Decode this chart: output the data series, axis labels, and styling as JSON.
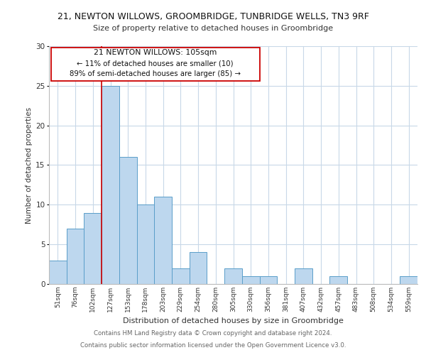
{
  "title_line1": "21, NEWTON WILLOWS, GROOMBRIDGE, TUNBRIDGE WELLS, TN3 9RF",
  "title_line2": "Size of property relative to detached houses in Groombridge",
  "xlabel": "Distribution of detached houses by size in Groombridge",
  "ylabel": "Number of detached properties",
  "bin_labels": [
    "51sqm",
    "76sqm",
    "102sqm",
    "127sqm",
    "153sqm",
    "178sqm",
    "203sqm",
    "229sqm",
    "254sqm",
    "280sqm",
    "305sqm",
    "330sqm",
    "356sqm",
    "381sqm",
    "407sqm",
    "432sqm",
    "457sqm",
    "483sqm",
    "508sqm",
    "534sqm",
    "559sqm"
  ],
  "bar_heights": [
    3,
    7,
    9,
    25,
    16,
    10,
    11,
    2,
    4,
    0,
    2,
    1,
    1,
    0,
    2,
    0,
    1,
    0,
    0,
    0,
    1
  ],
  "bar_color": "#bdd7ee",
  "bar_edge_color": "#5a9ec9",
  "annotation_line1": "21 NEWTON WILLOWS: 105sqm",
  "annotation_line2": "← 11% of detached houses are smaller (10)",
  "annotation_line3": "89% of semi-detached houses are larger (85) →",
  "annotation_box_edge": "#cc0000",
  "ref_line_color": "#cc0000",
  "ylim": [
    0,
    30
  ],
  "yticks": [
    0,
    5,
    10,
    15,
    20,
    25,
    30
  ],
  "footer_line1": "Contains HM Land Registry data © Crown copyright and database right 2024.",
  "footer_line2": "Contains public sector information licensed under the Open Government Licence v3.0.",
  "bg_color": "#ffffff",
  "grid_color": "#c8d8e8"
}
